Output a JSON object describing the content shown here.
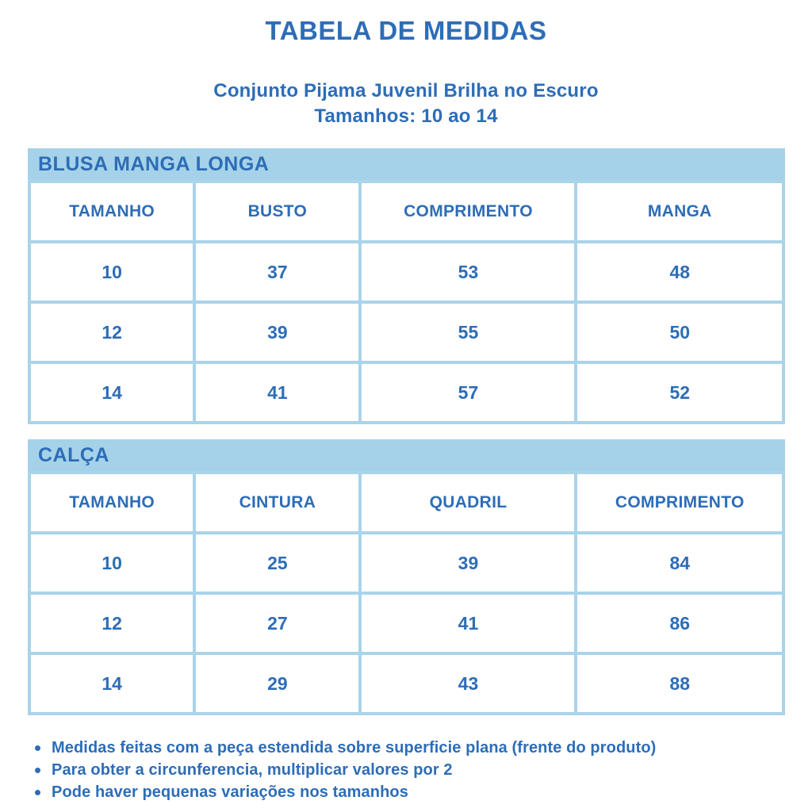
{
  "page": {
    "title": "TABELA DE MEDIDAS",
    "subtitle_line1": "Conjunto Pijama Juvenil Brilha no Escuro",
    "subtitle_line2": "Tamanhos: 10 ao 14"
  },
  "colors": {
    "text_blue": "#2d6db7",
    "band_blue": "#a5d2e8",
    "border_blue": "#a9d4ea",
    "background": "#ffffff"
  },
  "tables": [
    {
      "section_title": "BLUSA MANGA LONGA",
      "columns": [
        "TAMANHO",
        "BUSTO",
        "COMPRIMENTO",
        "MANGA"
      ],
      "rows": [
        [
          "10",
          "37",
          "53",
          "48"
        ],
        [
          "12",
          "39",
          "55",
          "50"
        ],
        [
          "14",
          "41",
          "57",
          "52"
        ]
      ]
    },
    {
      "section_title": "CALÇA",
      "columns": [
        "TAMANHO",
        "CINTURA",
        "QUADRIL",
        "COMPRIMENTO"
      ],
      "rows": [
        [
          "10",
          "25",
          "39",
          "84"
        ],
        [
          "12",
          "27",
          "41",
          "86"
        ],
        [
          "14",
          "29",
          "43",
          "88"
        ]
      ]
    }
  ],
  "notes": [
    "Medidas feitas com a peça estendida sobre superficie plana (frente do produto)",
    "Para obter a circunferencia, multiplicar valores por 2",
    "Pode haver pequenas variações nos tamanhos"
  ]
}
